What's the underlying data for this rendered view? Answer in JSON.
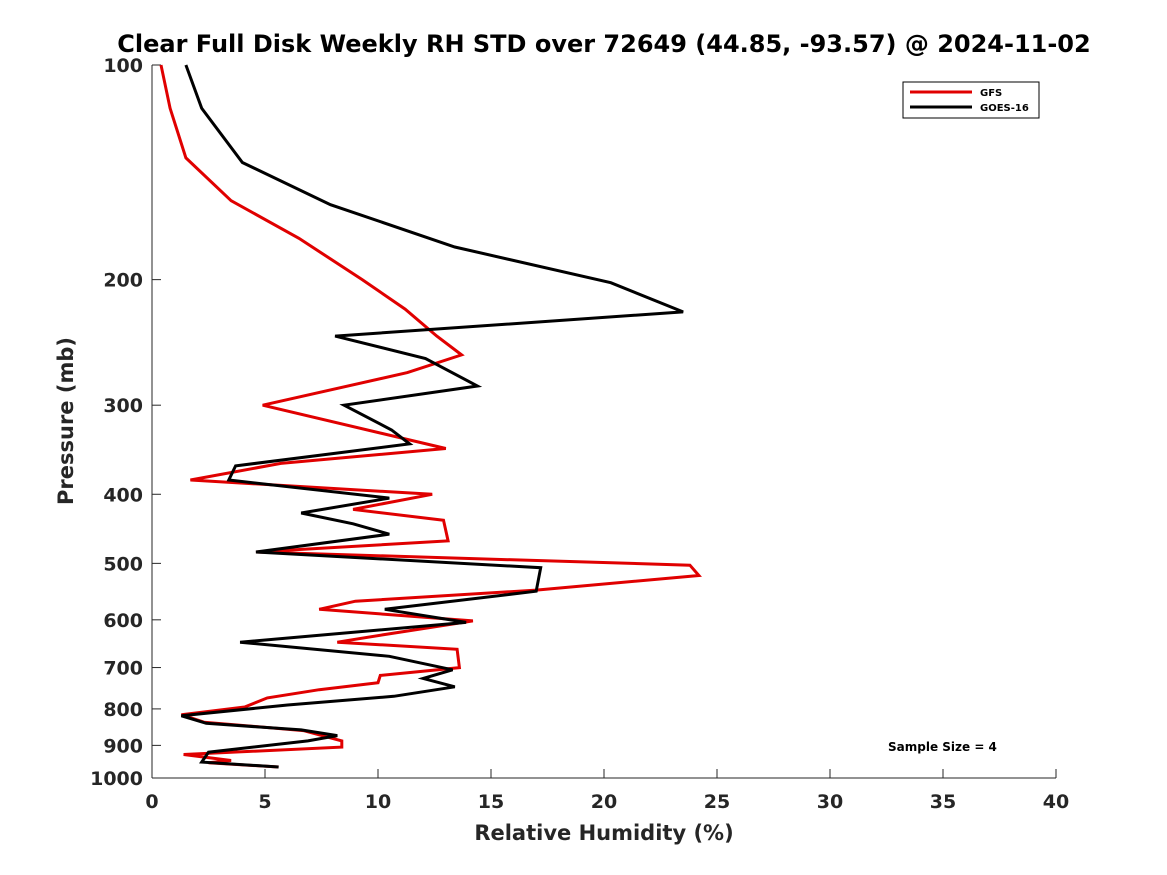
{
  "chart_data": {
    "type": "line",
    "title": "Clear Full Disk Weekly RH STD over 72649 (44.85, -93.57) @ 2024-11-02",
    "xlabel": "Relative Humidity (%)",
    "ylabel": "Pressure (mb)",
    "xlim": [
      0,
      40
    ],
    "ylim": [
      100,
      1000
    ],
    "yscale": "log",
    "yreversed": true,
    "xticks": [
      0,
      5,
      10,
      15,
      20,
      25,
      30,
      35,
      40
    ],
    "yticks": [
      100,
      200,
      300,
      400,
      500,
      600,
      700,
      800,
      900,
      1000
    ],
    "grid": false,
    "legend_position": "top-right",
    "annotation": "Sample Size = 4",
    "series": [
      {
        "name": "GFS",
        "color": "#e00000",
        "points": [
          [
            0.4,
            100
          ],
          [
            0.8,
            115
          ],
          [
            1.5,
            135
          ],
          [
            3.5,
            155
          ],
          [
            6.5,
            175
          ],
          [
            9.3,
            200
          ],
          [
            11.2,
            220
          ],
          [
            12.6,
            240
          ],
          [
            13.7,
            255
          ],
          [
            11.3,
            270
          ],
          [
            4.9,
            300
          ],
          [
            13.0,
            345
          ],
          [
            5.7,
            362
          ],
          [
            1.7,
            382
          ],
          [
            12.4,
            400
          ],
          [
            8.9,
            420
          ],
          [
            12.9,
            435
          ],
          [
            13.1,
            465
          ],
          [
            4.6,
            482
          ],
          [
            23.8,
            503
          ],
          [
            24.2,
            520
          ],
          [
            17.0,
            545
          ],
          [
            9.0,
            565
          ],
          [
            7.4,
            580
          ],
          [
            14.2,
            602
          ],
          [
            10.2,
            630
          ],
          [
            8.2,
            645
          ],
          [
            13.5,
            660
          ],
          [
            13.6,
            700
          ],
          [
            10.1,
            718
          ],
          [
            10.0,
            735
          ],
          [
            7.4,
            752
          ],
          [
            5.1,
            772
          ],
          [
            4.1,
            795
          ],
          [
            1.3,
            815
          ],
          [
            2.3,
            835
          ],
          [
            6.7,
            858
          ],
          [
            8.4,
            887
          ],
          [
            8.4,
            905
          ],
          [
            1.4,
            927
          ],
          [
            3.5,
            945
          ],
          [
            2.5,
            952
          ],
          [
            5.6,
            965
          ]
        ]
      },
      {
        "name": "GOES-16",
        "color": "#000000",
        "points": [
          [
            1.5,
            100
          ],
          [
            2.2,
            115
          ],
          [
            4.0,
            137
          ],
          [
            7.9,
            157
          ],
          [
            13.4,
            180
          ],
          [
            20.3,
            202
          ],
          [
            23.5,
            222
          ],
          [
            8.1,
            240
          ],
          [
            12.1,
            258
          ],
          [
            14.4,
            282
          ],
          [
            8.5,
            300
          ],
          [
            10.6,
            325
          ],
          [
            11.4,
            340
          ],
          [
            3.7,
            365
          ],
          [
            3.4,
            382
          ],
          [
            10.5,
            405
          ],
          [
            6.6,
            425
          ],
          [
            8.9,
            440
          ],
          [
            10.5,
            455
          ],
          [
            4.6,
            482
          ],
          [
            17.2,
            507
          ],
          [
            17.0,
            547
          ],
          [
            10.3,
            580
          ],
          [
            13.9,
            605
          ],
          [
            3.9,
            645
          ],
          [
            10.5,
            675
          ],
          [
            13.3,
            705
          ],
          [
            12.0,
            725
          ],
          [
            13.4,
            745
          ],
          [
            10.7,
            768
          ],
          [
            6.0,
            790
          ],
          [
            1.3,
            818
          ],
          [
            2.4,
            838
          ],
          [
            6.6,
            856
          ],
          [
            8.2,
            872
          ],
          [
            6.9,
            887
          ],
          [
            2.5,
            920
          ],
          [
            2.2,
            950
          ],
          [
            5.6,
            965
          ]
        ]
      }
    ]
  }
}
